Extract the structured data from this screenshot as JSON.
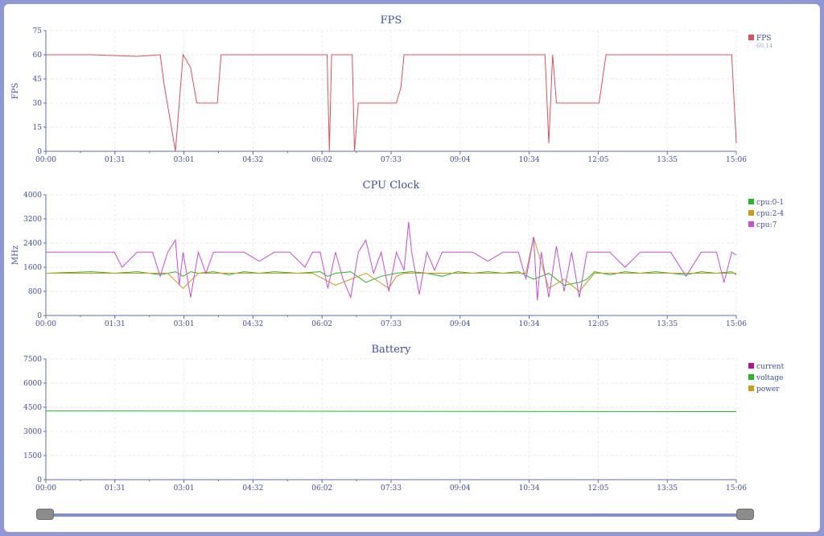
{
  "colors": {
    "axis": "#5b6fb8",
    "grid": "#e4e8f2",
    "text": "#3e4f9f"
  },
  "slider": {
    "start": 0,
    "end": 1
  },
  "chart_data": [
    {
      "type": "line",
      "title": "FPS",
      "ylabel": "FPS",
      "ylim": [
        0,
        75
      ],
      "yticks": [
        "0",
        "15",
        "30",
        "45",
        "60",
        "75"
      ],
      "xticks": [
        "00:00",
        "01:31",
        "03:01",
        "04:32",
        "06:02",
        "07:33",
        "09:04",
        "10:34",
        "12:05",
        "13:35",
        "15:06"
      ],
      "xlim": [
        0,
        906
      ],
      "grid": true,
      "legend": "top-right",
      "series": [
        {
          "name": "FPS",
          "legend_value": "60.14",
          "color": "#e0505a",
          "x": [
            0,
            60,
            120,
            150,
            155,
            170,
            180,
            190,
            198,
            208,
            225,
            230,
            245,
            260,
            280,
            290,
            300,
            310,
            330,
            345,
            360,
            369,
            372,
            375,
            380,
            388,
            395,
            402,
            405,
            410,
            420,
            440,
            460,
            466,
            470,
            475,
            480,
            490,
            500,
            520,
            530,
            540,
            560,
            590,
            610,
            620,
            640,
            648,
            655,
            660,
            665,
            670,
            680,
            690,
            700,
            720,
            726,
            735,
            745,
            760,
            780,
            800,
            820,
            840,
            860,
            880,
            900,
            906
          ],
          "y": [
            60,
            60,
            59,
            60,
            42,
            0,
            60,
            52,
            30,
            30,
            30,
            60,
            60,
            60,
            60,
            60,
            60,
            60,
            60,
            60,
            60,
            60,
            0,
            60,
            60,
            60,
            60,
            60,
            0,
            30,
            30,
            30,
            30,
            40,
            60,
            60,
            60,
            60,
            60,
            60,
            60,
            60,
            60,
            60,
            60,
            60,
            60,
            60,
            60,
            5,
            60,
            30,
            30,
            30,
            30,
            30,
            30,
            60,
            60,
            60,
            60,
            60,
            60,
            60,
            60,
            60,
            60,
            5
          ]
        }
      ]
    },
    {
      "type": "line",
      "title": "CPU Clock",
      "ylabel": "MHz",
      "ylim": [
        0,
        4000
      ],
      "yticks": [
        "0",
        "800",
        "1600",
        "2400",
        "3200",
        "4000"
      ],
      "xticks": [
        "00:00",
        "01:31",
        "03:01",
        "04:32",
        "06:02",
        "07:33",
        "09:04",
        "10:34",
        "12:05",
        "13:35",
        "15:06"
      ],
      "xlim": [
        0,
        906
      ],
      "grid": true,
      "legend": "top-right",
      "series": [
        {
          "name": "cpu:0-1",
          "color": "#22b922",
          "x": [
            0,
            60,
            90,
            120,
            150,
            170,
            180,
            190,
            200,
            220,
            240,
            260,
            280,
            300,
            330,
            360,
            370,
            380,
            400,
            420,
            440,
            460,
            480,
            500,
            520,
            540,
            560,
            580,
            600,
            620,
            640,
            650,
            660,
            680,
            700,
            710,
            720,
            740,
            760,
            780,
            800,
            820,
            840,
            860,
            880,
            900,
            906
          ],
          "y": [
            1400,
            1450,
            1400,
            1450,
            1350,
            1450,
            1300,
            1450,
            1400,
            1450,
            1350,
            1450,
            1400,
            1450,
            1400,
            1450,
            1300,
            1400,
            1450,
            1100,
            1300,
            1400,
            1450,
            1400,
            1300,
            1450,
            1400,
            1450,
            1400,
            1450,
            1200,
            1300,
            1400,
            1000,
            1100,
            1200,
            1450,
            1350,
            1450,
            1400,
            1450,
            1400,
            1350,
            1450,
            1400,
            1450,
            1350
          ]
        },
        {
          "name": "cpu:2-4",
          "color": "#d09a12",
          "x": [
            0,
            150,
            160,
            180,
            200,
            350,
            380,
            400,
            420,
            450,
            460,
            470,
            500,
            540,
            600,
            630,
            640,
            660,
            680,
            700,
            720,
            906
          ],
          "y": [
            1400,
            1400,
            1400,
            900,
            1400,
            1400,
            1000,
            1200,
            1400,
            900,
            1300,
            1400,
            1400,
            1400,
            1400,
            1400,
            2600,
            900,
            1200,
            800,
            1400,
            1400
          ]
        },
        {
          "name": "cpu:7",
          "color": "#c64fd6",
          "x": [
            0,
            60,
            90,
            100,
            120,
            140,
            150,
            160,
            170,
            175,
            180,
            190,
            200,
            210,
            220,
            240,
            260,
            280,
            300,
            320,
            340,
            350,
            360,
            370,
            380,
            390,
            400,
            410,
            420,
            430,
            440,
            450,
            460,
            470,
            476,
            480,
            490,
            500,
            510,
            520,
            540,
            560,
            580,
            600,
            620,
            630,
            640,
            645,
            650,
            660,
            670,
            680,
            690,
            700,
            710,
            720,
            740,
            760,
            780,
            800,
            820,
            840,
            860,
            880,
            890,
            900,
            906
          ],
          "y": [
            2100,
            2100,
            2100,
            1600,
            2100,
            2100,
            1300,
            2100,
            2500,
            1000,
            2100,
            600,
            2100,
            1400,
            2100,
            2100,
            2100,
            1800,
            2100,
            2100,
            1600,
            2100,
            2100,
            900,
            2100,
            1200,
            600,
            2100,
            2500,
            1400,
            2100,
            800,
            2100,
            1500,
            3100,
            2100,
            700,
            2100,
            1500,
            2100,
            2100,
            2100,
            1800,
            2100,
            2100,
            1200,
            2600,
            500,
            2100,
            600,
            2300,
            800,
            2100,
            600,
            2100,
            2100,
            2100,
            1600,
            2100,
            2100,
            2100,
            1300,
            2100,
            2100,
            1100,
            2100,
            2000
          ]
        }
      ]
    },
    {
      "type": "line",
      "title": "Battery",
      "ylabel": "",
      "ylim": [
        0,
        7500
      ],
      "yticks": [
        "0",
        "1500",
        "3000",
        "4500",
        "6000",
        "7500"
      ],
      "xticks": [
        "00:00",
        "01:31",
        "03:01",
        "04:32",
        "06:02",
        "07:33",
        "09:04",
        "10:34",
        "12:05",
        "13:35",
        "15:06"
      ],
      "xlim": [
        0,
        906
      ],
      "grid": true,
      "legend": "top-right",
      "series": [
        {
          "name": "current",
          "color": "#b0159c",
          "x": [],
          "y": []
        },
        {
          "name": "voltage",
          "color": "#22b922",
          "x": [
            0,
            300,
            600,
            906
          ],
          "y": [
            4270,
            4255,
            4240,
            4225
          ]
        },
        {
          "name": "power",
          "color": "#d09a12",
          "x": [],
          "y": []
        }
      ]
    }
  ]
}
